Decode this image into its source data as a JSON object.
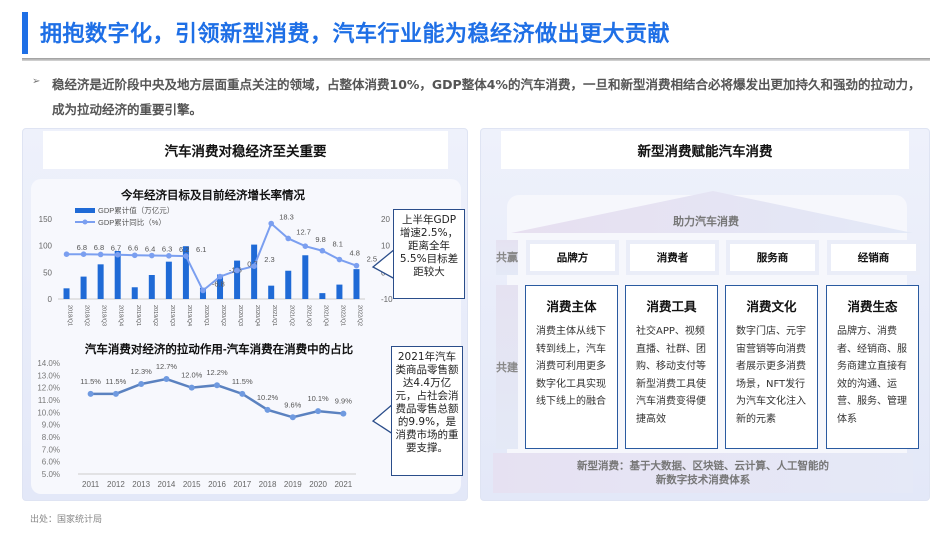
{
  "header": {
    "title": "拥抱数字化，引领新型消费，汽车行业能为稳经济做出更大贡献",
    "bullet_icon": "arrow-right-icon",
    "intro": "稳经济是近阶段中央及地方层面重点关注的领域，占整体消费10%，GDP整体4%的汽车消费，一旦和新型消费相结合必将爆发出更加持久和强劲的拉动力，成为拉动经济的重要引擎。"
  },
  "left_panel": {
    "title": "汽车消费对稳经济至关重要",
    "callout1": "上半年GDP增速2.5%，距离全年5.5%目标差距较大",
    "callout2": "2021年汽车类商品零售额达4.4万亿元，占社会消费品零售总额的9.9%，是消费市场的重要支撑。"
  },
  "right_panel": {
    "title": "新型消费赋能汽车消费",
    "roof": "助力汽车消费",
    "row1_label": "共赢",
    "row2_label": "共建",
    "roles": [
      "品牌方",
      "消费者",
      "服务商",
      "经销商"
    ],
    "cards": [
      {
        "title": "消费主体",
        "text": "消费主体从线下转到线上，汽车消费可利用更多数字化工具实现线下线上的融合"
      },
      {
        "title": "消费工具",
        "text": "社交APP、视频直播、社群、团购、移动支付等新型消费工具使汽车消费变得便捷高效"
      },
      {
        "title": "消费文化",
        "text": "数字门店、元宇宙营销等向消费者展示更多消费场景，NFT发行为汽车文化注入新的元素"
      },
      {
        "title": "消费生态",
        "text": "品牌方、消费者、经销商、服务商建立直接有效的沟通、运营、服务、管理体系"
      }
    ],
    "band_line1": "新型消费：基于大数据、区块链、云计算、人工智能的",
    "band_line2": "新数字技术消费体系"
  },
  "source": "出处：国家统计局",
  "colors": {
    "accent": "#1e6fe6",
    "bar": "#1f6ad6",
    "line1": "#7b9ff0",
    "line2": "#5b82c0"
  },
  "chart_data": [
    {
      "type": "bar+line",
      "title": "今年经济目标及目前经济增长率情况",
      "categories": [
        "2018/Q1",
        "2018/Q2",
        "2018/Q3",
        "2018/Q4",
        "2019/Q1",
        "2019/Q2",
        "2019/Q3",
        "2019/Q4",
        "2020/Q1",
        "2020/Q2",
        "2020/Q3",
        "2020/Q4",
        "2021/Q1",
        "2021/Q2",
        "2021/Q3",
        "2021/Q4",
        "2022/Q1",
        "2022/Q2"
      ],
      "series": [
        {
          "name": "GDP累计值（万亿元）",
          "type": "bar",
          "axis": "left",
          "values": [
            20,
            42,
            65,
            90,
            22,
            45,
            70,
            99,
            21,
            46,
            72,
            102,
            25,
            53,
            82,
            11,
            27,
            56
          ]
        },
        {
          "name": "GDP累计同比（%）",
          "type": "line",
          "axis": "right",
          "values": [
            6.8,
            6.8,
            6.7,
            6.6,
            6.4,
            6.3,
            6.2,
            6.1,
            -6.8,
            -1.6,
            0.7,
            2.3,
            18.3,
            12.7,
            9.8,
            8.1,
            4.8,
            2.5
          ],
          "labels": [
            "6.8",
            "6.8",
            "6.7",
            "6.6",
            "6.4",
            "6.3",
            "6.2",
            "6.1",
            "-6.8",
            "-1.6",
            "0.7",
            "2.3",
            "18.3",
            "12.7",
            "9.8",
            "8.1",
            "4.8",
            "2.5"
          ]
        }
      ],
      "left_ticks": [
        "0",
        "50",
        "100",
        "150"
      ],
      "left_ylim": [
        0,
        150
      ],
      "right_ticks": [
        "-10",
        "0",
        "10",
        "20"
      ],
      "right_ylim": [
        -10,
        20
      ],
      "legend": "top-left"
    },
    {
      "type": "line",
      "title": "汽车消费对经济的拉动作用-汽车消费在消费中的占比",
      "categories": [
        "2011",
        "2012",
        "2013",
        "2014",
        "2015",
        "2016",
        "2017",
        "2018",
        "2019",
        "2020",
        "2021"
      ],
      "values": [
        11.5,
        11.5,
        12.3,
        12.7,
        12.0,
        12.2,
        11.5,
        10.2,
        9.6,
        10.1,
        9.9
      ],
      "labels": [
        "11.5%",
        "11.5%",
        "12.3%",
        "12.7%",
        "12.0%",
        "12.2%",
        "11.5%",
        "10.2%",
        "9.6%",
        "10.1%",
        "9.9%"
      ],
      "y_ticks": [
        "5.0%",
        "6.0%",
        "7.0%",
        "8.0%",
        "9.0%",
        "10.0%",
        "11.0%",
        "12.0%",
        "13.0%",
        "14.0%"
      ],
      "ylim": [
        5,
        14
      ]
    }
  ]
}
